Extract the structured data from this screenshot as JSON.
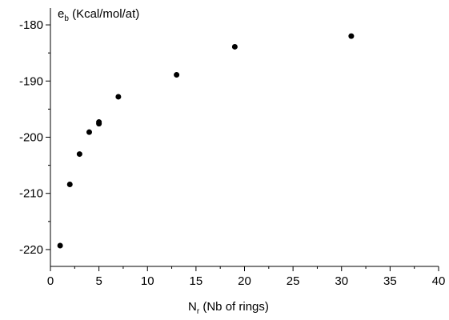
{
  "chart_data": {
    "type": "scatter",
    "title": "",
    "xlabel": {
      "main": "N",
      "subscript": "r",
      "rest": " (Nb of rings)"
    },
    "ylabel": {
      "main": "e",
      "subscript": "b",
      "rest": " (Kcal/mol/at)"
    },
    "xlim": [
      0,
      40
    ],
    "ylim": [
      -223,
      -177
    ],
    "x_ticks": [
      0,
      5,
      10,
      15,
      20,
      25,
      30,
      35,
      40
    ],
    "y_ticks": [
      -220,
      -210,
      -200,
      -190,
      -180
    ],
    "x_tick_labels": [
      "0",
      "5",
      "10",
      "15",
      "20",
      "25",
      "30",
      "35",
      "40"
    ],
    "y_tick_labels": [
      "-220",
      "-210",
      "-200",
      "-190",
      "-180"
    ],
    "grid": false,
    "legend": "none",
    "marker_color": "#000000",
    "points": [
      {
        "x": 1,
        "y": -219.3
      },
      {
        "x": 2,
        "y": -208.4
      },
      {
        "x": 3,
        "y": -203.0
      },
      {
        "x": 4,
        "y": -199.1
      },
      {
        "x": 5,
        "y": -197.3
      },
      {
        "x": 5,
        "y": -197.6
      },
      {
        "x": 7,
        "y": -192.8
      },
      {
        "x": 13,
        "y": -188.9
      },
      {
        "x": 19,
        "y": -183.9
      },
      {
        "x": 31,
        "y": -182.0
      }
    ]
  }
}
